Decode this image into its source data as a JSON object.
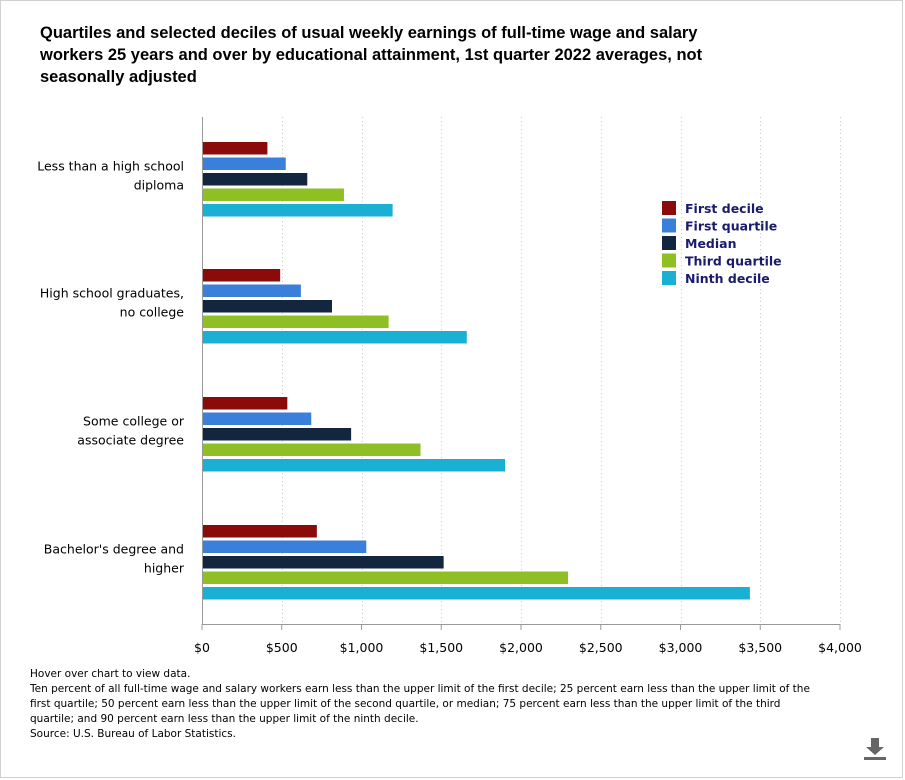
{
  "title": "Quartiles and selected deciles of usual weekly earnings of full-time wage and salary workers 25 years and over by educational attainment, 1st quarter 2022 averages, not seasonally adjusted",
  "notes": {
    "hover": "Hover over chart to view data.",
    "footnote": "Ten percent of all full-time wage and salary workers earn less than the upper limit of the first decile; 25 percent earn less than the upper limit of the first quartile; 50 percent earn less than the upper limit of the second quartile, or median; 75 percent earn less than the upper limit of the third quartile; and 90 percent earn less than the upper limit of the ninth decile.",
    "source": "Source: U.S. Bureau of Labor Statistics."
  },
  "download_icon": "download-icon",
  "chart_data": {
    "type": "bar",
    "orientation": "horizontal",
    "title": "Quartiles and selected deciles of usual weekly earnings of full-time wage and salary workers 25 years and over by educational attainment, 1st quarter 2022 averages, not seasonally adjusted",
    "categories": [
      [
        "Less than a high school",
        "diploma"
      ],
      [
        "High school graduates,",
        "no college"
      ],
      [
        "Some college or",
        "associate degree"
      ],
      [
        "Bachelor's degree and",
        "higher"
      ]
    ],
    "series": [
      {
        "name": "First decile",
        "color": "#8b0a0a",
        "values": [
          410,
          490,
          535,
          720
        ]
      },
      {
        "name": "First quartile",
        "color": "#3a7fd9",
        "values": [
          525,
          620,
          685,
          1030
        ]
      },
      {
        "name": "Median",
        "color": "#12263f",
        "values": [
          660,
          815,
          935,
          1515
        ]
      },
      {
        "name": "Third quartile",
        "color": "#8ec024",
        "values": [
          890,
          1170,
          1370,
          2295
        ]
      },
      {
        "name": "Ninth decile",
        "color": "#1ab0d3",
        "values": [
          1195,
          1660,
          1900,
          3435
        ]
      }
    ],
    "xlim": [
      0,
      4000
    ],
    "tick_values": [
      0,
      500,
      1000,
      1500,
      2000,
      2500,
      3000,
      3500,
      4000
    ],
    "tick_labels": [
      "$0",
      "$500",
      "$1,000",
      "$1,500",
      "$2,000",
      "$2,500",
      "$3,000",
      "$3,500",
      "$4,000"
    ],
    "grid": "vertical dotted",
    "legend_position": "right"
  }
}
